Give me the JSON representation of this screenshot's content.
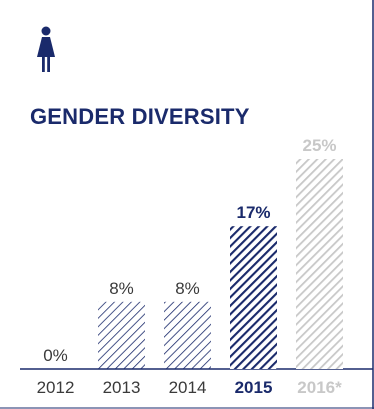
{
  "title": "GENDER DIVERSITY",
  "icon": "woman-icon",
  "colors": {
    "navy": "#1a2a6b",
    "grey": "#c8c8c8",
    "text": "#3a3a3a",
    "frame": "#1a2a6b"
  },
  "chart_data": {
    "type": "bar",
    "categories": [
      "2012",
      "2013",
      "2014",
      "2015",
      "2016*"
    ],
    "values": [
      0,
      8,
      8,
      17,
      25
    ],
    "value_labels": [
      "0%",
      "8%",
      "8%",
      "17%",
      "25%"
    ],
    "styles": [
      "outline",
      "outline",
      "outline",
      "highlight",
      "projection"
    ],
    "title": "GENDER DIVERSITY",
    "ylim": [
      0,
      25
    ],
    "grid": false
  }
}
